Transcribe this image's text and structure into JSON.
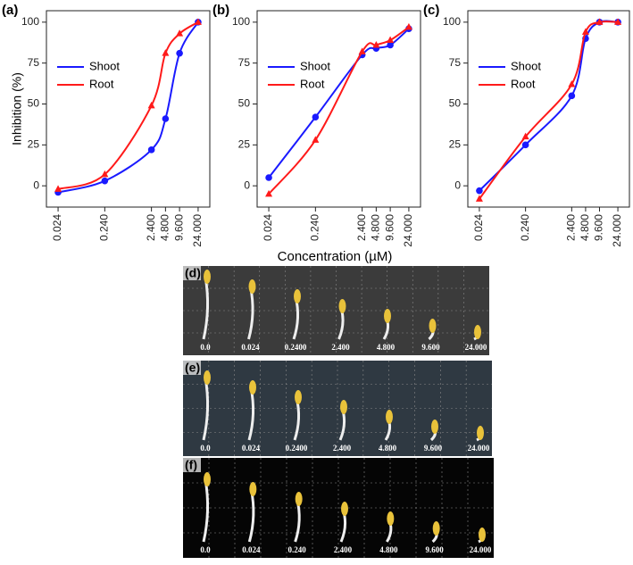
{
  "chart_data": [
    {
      "type": "line",
      "title": "(a)",
      "ylabel": "Inhibition (%)",
      "log_x": true,
      "legend": "upper left",
      "x": [
        0.024,
        0.24,
        2.4,
        4.8,
        9.6,
        24
      ],
      "xlim": [
        0.0135,
        42.7
      ],
      "ylim": [
        -13,
        107
      ],
      "xticks": [
        0.024,
        {
          "value": 0.24,
          "label": "0.240"
        },
        {
          "value": 2.4,
          "label": "2.400"
        },
        {
          "value": 4.8,
          "label": "4.800"
        },
        {
          "value": 9.6,
          "label": "9.600"
        },
        {
          "value": 24,
          "label": "24.000"
        }
      ],
      "yticks": [
        0,
        25,
        50,
        75,
        100
      ],
      "series": [
        {
          "name": "Shoot",
          "color": "#1a1aff",
          "marker": "circle",
          "values": [
            -4,
            3,
            22,
            41,
            81,
            100
          ]
        },
        {
          "name": "Root",
          "color": "#ff1a1a",
          "marker": "triangle",
          "values": [
            -2,
            7,
            49,
            81,
            93,
            100
          ]
        }
      ]
    },
    {
      "type": "line",
      "title": "(b)",
      "log_x": true,
      "legend": "upper left",
      "x": [
        0.024,
        0.24,
        2.4,
        4.8,
        9.6,
        24
      ],
      "xlim": [
        0.0135,
        42.7
      ],
      "ylim": [
        -13,
        107
      ],
      "xticks": [
        0.024,
        {
          "value": 0.24,
          "label": "0.240"
        },
        {
          "value": 2.4,
          "label": "2.400"
        },
        {
          "value": 4.8,
          "label": "4.800"
        },
        {
          "value": 9.6,
          "label": "9.600"
        },
        {
          "value": 24,
          "label": "24.000"
        }
      ],
      "yticks": [
        0,
        25,
        50,
        75,
        100
      ],
      "series": [
        {
          "name": "Shoot",
          "color": "#1a1aff",
          "marker": "circle",
          "values": [
            5,
            42,
            80,
            84,
            86,
            96
          ]
        },
        {
          "name": "Root",
          "color": "#ff1a1a",
          "marker": "triangle",
          "values": [
            -5,
            28,
            82,
            86,
            89,
            97
          ]
        }
      ]
    },
    {
      "type": "line",
      "title": "(c)",
      "log_x": true,
      "legend": "upper left",
      "x": [
        0.024,
        0.24,
        2.4,
        4.8,
        9.6,
        24
      ],
      "xlim": [
        0.0135,
        42.7
      ],
      "ylim": [
        -13,
        107
      ],
      "xticks": [
        0.024,
        {
          "value": 0.24,
          "label": "0.240"
        },
        {
          "value": 2.4,
          "label": "2.400"
        },
        {
          "value": 4.8,
          "label": "4.800"
        },
        {
          "value": 9.6,
          "label": "9.600"
        },
        {
          "value": 24,
          "label": "24.000"
        }
      ],
      "yticks": [
        0,
        25,
        50,
        75,
        100
      ],
      "series": [
        {
          "name": "Shoot",
          "color": "#1a1aff",
          "marker": "circle",
          "values": [
            -3,
            25,
            55,
            90,
            100,
            100
          ]
        },
        {
          "name": "Root",
          "color": "#ff1a1a",
          "marker": "triangle",
          "values": [
            -8,
            30,
            62,
            94,
            100,
            100
          ]
        }
      ]
    }
  ],
  "xlabel": "Concentration (µM)",
  "photos": [
    {
      "label": "(d)",
      "concentrations": [
        "0.0",
        "0.024",
        "0.2400",
        "2.400",
        "4.800",
        "9.600",
        "24.000"
      ]
    },
    {
      "label": "(e)",
      "concentrations": [
        "0.0",
        "0.024",
        "0.2400",
        "2.400",
        "4.800",
        "9.600",
        "24.000"
      ]
    },
    {
      "label": "(f)",
      "concentrations": [
        "0.0",
        "0.024",
        "0.240",
        "2.400",
        "4.800",
        "9.600",
        "24.000"
      ]
    }
  ]
}
